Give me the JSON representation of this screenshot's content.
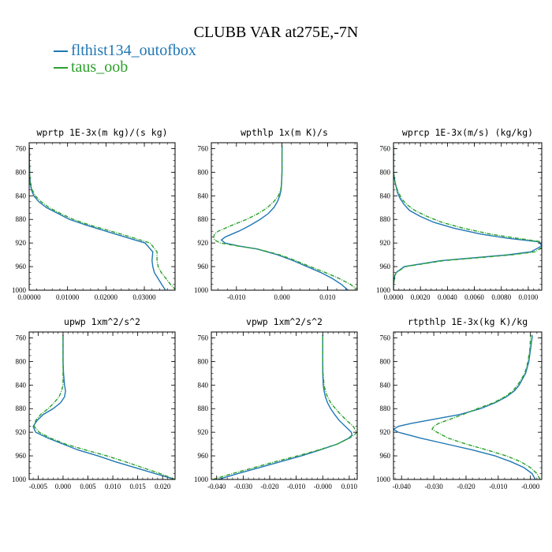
{
  "title": "CLUBB VAR at275E,-7N",
  "colors": {
    "series1": "#1f77b4",
    "series2": "#2ca02c"
  },
  "chart_data": [
    {
      "type": "line",
      "name": "wprtp",
      "title": "wprtp  1E-3x(m kg)/(s kg)",
      "xlim": [
        0,
        0.038
      ],
      "ylim": [
        1000,
        750
      ],
      "y_ticks": [
        760,
        800,
        840,
        880,
        920,
        960,
        1000
      ],
      "x_ticks": [
        0.0,
        0.01,
        0.02,
        0.03
      ],
      "x_tick_labels": [
        "0.00000",
        "0.01000",
        "0.02000",
        "0.03000"
      ],
      "y": [
        1000,
        990,
        970,
        960,
        950,
        935,
        920,
        905,
        890,
        880,
        870,
        860,
        850,
        840,
        830,
        820,
        810,
        800,
        790,
        780,
        770,
        760,
        755
      ],
      "series": [
        {
          "name": "flthist134_outofbox",
          "values": [
            0.0355,
            0.0345,
            0.0326,
            0.0322,
            0.032,
            0.0322,
            0.0302,
            0.0225,
            0.015,
            0.0105,
            0.0075,
            0.0045,
            0.0025,
            0.0012,
            0.0006,
            0.0003,
            0.0002,
            0.0001,
            0.0001,
            5e-05,
            5e-05,
            0.0,
            0.0
          ]
        },
        {
          "name": "taus_oob",
          "values": [
            0.0382,
            0.0368,
            0.0344,
            0.0336,
            0.0333,
            0.0333,
            0.0315,
            0.024,
            0.016,
            0.0115,
            0.0082,
            0.0052,
            0.0031,
            0.0016,
            0.0008,
            0.0004,
            0.0002,
            0.0001,
            0.0001,
            5e-05,
            5e-05,
            0.0,
            0.0
          ]
        }
      ]
    },
    {
      "type": "line",
      "name": "wpthlp",
      "title": "wpthlp  1x(m K)/s",
      "xlim": [
        -0.0155,
        0.0165
      ],
      "ylim": [
        1000,
        750
      ],
      "y_ticks": [
        760,
        800,
        840,
        880,
        920,
        960,
        1000
      ],
      "x_ticks": [
        -0.01,
        0.0,
        0.01
      ],
      "x_tick_labels": [
        "-0.010",
        "0.000",
        "0.010"
      ],
      "y": [
        1000,
        990,
        980,
        970,
        960,
        950,
        940,
        930,
        925,
        920,
        915,
        910,
        905,
        900,
        895,
        890,
        880,
        870,
        860,
        850,
        840,
        830,
        820,
        800,
        780,
        760,
        755
      ],
      "series": [
        {
          "name": "flthist134_outofbox",
          "values": [
            0.0145,
            0.013,
            0.011,
            0.0085,
            0.0055,
            0.0025,
            -0.001,
            -0.0055,
            -0.0095,
            -0.0125,
            -0.0133,
            -0.0125,
            -0.011,
            -0.0095,
            -0.0082,
            -0.007,
            -0.0048,
            -0.003,
            -0.0018,
            -0.001,
            -0.0005,
            -0.0002,
            -0.0001,
            0.0,
            0.0,
            0.0,
            0.0
          ]
        },
        {
          "name": "taus_oob",
          "values": [
            0.0168,
            0.015,
            0.0125,
            0.0095,
            0.0062,
            0.003,
            -0.0005,
            -0.0055,
            -0.0098,
            -0.0135,
            -0.0148,
            -0.015,
            -0.0148,
            -0.014,
            -0.0125,
            -0.011,
            -0.0078,
            -0.0052,
            -0.0032,
            -0.0018,
            -0.0008,
            -0.0003,
            -0.0001,
            0.0,
            0.0,
            0.0,
            0.0
          ]
        }
      ]
    },
    {
      "type": "line",
      "name": "wprcp",
      "title": "wprcp  1E-3x(m/s) (kg/kg)",
      "xlim": [
        0,
        0.011
      ],
      "ylim": [
        1000,
        750
      ],
      "y_ticks": [
        760,
        800,
        840,
        880,
        920,
        960,
        1000
      ],
      "x_ticks": [
        0.0,
        0.002,
        0.004,
        0.006,
        0.008,
        0.01
      ],
      "x_tick_labels": [
        "0.0000",
        "0.0020",
        "0.0040",
        "0.0060",
        "0.0080",
        "0.0100"
      ],
      "y": [
        1000,
        990,
        975,
        970,
        960,
        950,
        945,
        940,
        935,
        925,
        918,
        912,
        905,
        895,
        885,
        875,
        865,
        855,
        845,
        835,
        825,
        815,
        800,
        780,
        760,
        755
      ],
      "series": [
        {
          "name": "flthist134_outofbox",
          "values": [
            0.0,
            0.0,
            0.0001,
            0.0002,
            0.0008,
            0.0035,
            0.006,
            0.0085,
            0.0102,
            0.011,
            0.0108,
            0.0085,
            0.0065,
            0.0045,
            0.003,
            0.002,
            0.0012,
            0.0008,
            0.0005,
            0.0003,
            0.0002,
            0.0001,
            0.0,
            0.0,
            0.0,
            0.0
          ]
        },
        {
          "name": "taus_oob",
          "values": [
            0.0,
            0.0,
            0.0001,
            0.0002,
            0.0009,
            0.0037,
            0.0063,
            0.0088,
            0.0105,
            0.0112,
            0.011,
            0.0092,
            0.0072,
            0.0052,
            0.0036,
            0.0025,
            0.0016,
            0.001,
            0.0006,
            0.0004,
            0.0002,
            0.0001,
            0.0,
            0.0,
            0.0,
            0.0
          ]
        }
      ]
    },
    {
      "type": "line",
      "name": "upwp",
      "title": "upwp  1xm^2/s^2",
      "xlim": [
        -0.0068,
        0.0225
      ],
      "ylim": [
        1000,
        750
      ],
      "y_ticks": [
        760,
        800,
        840,
        880,
        920,
        960,
        1000
      ],
      "x_ticks": [
        -0.005,
        0.0,
        0.005,
        0.01,
        0.015,
        0.02
      ],
      "x_tick_labels": [
        "-0.005",
        "0.000",
        "0.005",
        "0.010",
        "0.015",
        "0.020"
      ],
      "y": [
        1000,
        990,
        980,
        970,
        960,
        950,
        940,
        930,
        920,
        910,
        900,
        890,
        880,
        870,
        860,
        850,
        840,
        820,
        800,
        780,
        760,
        755
      ],
      "series": [
        {
          "name": "flthist134_outofbox",
          "values": [
            0.0225,
            0.0185,
            0.0145,
            0.0105,
            0.007,
            0.003,
            0.0,
            -0.003,
            -0.0055,
            -0.006,
            -0.0052,
            -0.004,
            -0.002,
            -0.0005,
            0.0003,
            0.0005,
            0.0003,
            0.0001,
            0.0,
            0.0,
            0.0,
            0.0
          ]
        },
        {
          "name": "taus_oob",
          "values": [
            0.0225,
            0.0195,
            0.016,
            0.0125,
            0.0088,
            0.0045,
            0.0005,
            -0.0025,
            -0.0048,
            -0.0058,
            -0.0055,
            -0.0045,
            -0.003,
            -0.0018,
            -0.0008,
            -0.0003,
            0.0,
            0.0,
            0.0,
            0.0,
            0.0,
            0.0
          ]
        }
      ]
    },
    {
      "type": "line",
      "name": "vpwp",
      "title": "vpwp  1xm^2/s^2",
      "xlim": [
        -0.042,
        0.013
      ],
      "ylim": [
        1000,
        750
      ],
      "y_ticks": [
        760,
        800,
        840,
        880,
        920,
        960,
        1000
      ],
      "x_ticks": [
        -0.04,
        -0.03,
        -0.02,
        -0.01,
        0.0,
        0.01
      ],
      "x_tick_labels": [
        "-0.040",
        "-0.030",
        "-0.020",
        "-0.010",
        "-0.000",
        "0.010"
      ],
      "y": [
        1000,
        990,
        980,
        970,
        960,
        950,
        940,
        930,
        925,
        920,
        910,
        900,
        890,
        880,
        870,
        860,
        850,
        840,
        820,
        800,
        780,
        760,
        755
      ],
      "series": [
        {
          "name": "flthist134_outofbox",
          "values": [
            -0.0395,
            -0.032,
            -0.024,
            -0.016,
            -0.008,
            -0.001,
            0.0055,
            0.0098,
            0.011,
            0.0108,
            0.0085,
            0.0062,
            0.0045,
            0.003,
            0.0018,
            0.001,
            0.0005,
            0.0002,
            0.0,
            0.0,
            0.0,
            0.0,
            0.0
          ]
        },
        {
          "name": "taus_oob",
          "values": [
            -0.0415,
            -0.034,
            -0.026,
            -0.018,
            -0.0095,
            -0.0015,
            0.0055,
            0.01,
            0.0118,
            0.0128,
            0.0115,
            0.009,
            0.0068,
            0.0048,
            0.003,
            0.0018,
            0.001,
            0.0005,
            0.0001,
            0.0,
            0.0,
            0.0,
            0.0
          ]
        }
      ]
    },
    {
      "type": "line",
      "name": "rtpthlp",
      "title": "rtpthlp  1E-3x(kg K)/kg",
      "xlim": [
        -0.0425,
        0.0035
      ],
      "ylim": [
        1000,
        750
      ],
      "y_ticks": [
        760,
        800,
        840,
        880,
        920,
        960,
        1000
      ],
      "x_ticks": [
        -0.04,
        -0.03,
        -0.02,
        -0.01,
        0.0
      ],
      "x_tick_labels": [
        "-0.040",
        "-0.030",
        "-0.020",
        "-0.010",
        "-0.000"
      ],
      "y": [
        1000,
        990,
        980,
        970,
        960,
        950,
        940,
        930,
        920,
        915,
        910,
        905,
        900,
        895,
        890,
        880,
        870,
        860,
        850,
        840,
        830,
        820,
        810,
        800,
        780,
        760,
        755
      ],
      "series": [
        {
          "name": "flthist134_outofbox",
          "values": [
            0.0015,
            0.0005,
            -0.002,
            -0.006,
            -0.011,
            -0.018,
            -0.026,
            -0.034,
            -0.041,
            -0.0425,
            -0.041,
            -0.037,
            -0.032,
            -0.027,
            -0.022,
            -0.0155,
            -0.011,
            -0.0075,
            -0.005,
            -0.0035,
            -0.0025,
            -0.0015,
            -0.001,
            -0.0005,
            0.0,
            0.0005,
            0.0005
          ]
        },
        {
          "name": "taus_oob",
          "values": [
            0.003,
            0.002,
            0.0,
            -0.003,
            -0.0075,
            -0.0135,
            -0.02,
            -0.0255,
            -0.029,
            -0.0305,
            -0.03,
            -0.0285,
            -0.026,
            -0.0235,
            -0.021,
            -0.0165,
            -0.0115,
            -0.008,
            -0.0055,
            -0.004,
            -0.0028,
            -0.0018,
            -0.0012,
            -0.0008,
            -0.0002,
            0.0,
            0.0
          ]
        }
      ]
    }
  ]
}
